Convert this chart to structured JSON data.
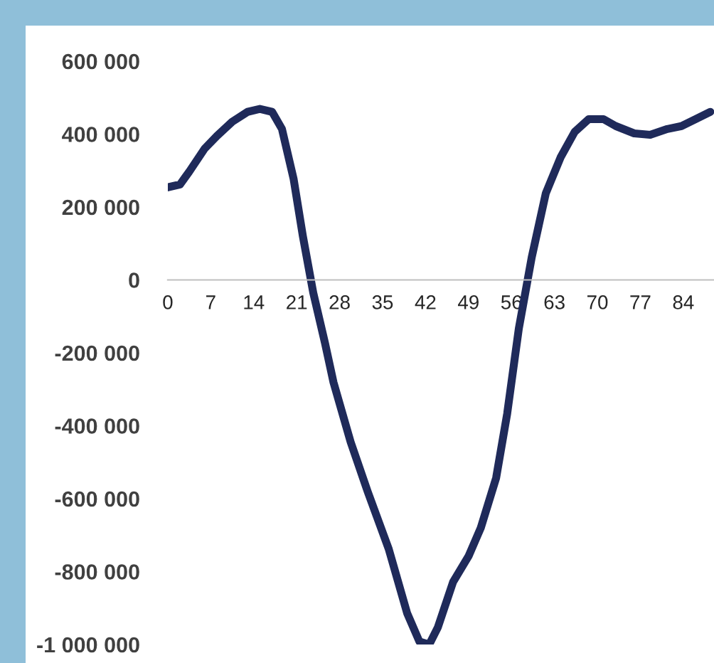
{
  "chart_data": {
    "type": "line",
    "x": [
      0,
      2,
      3.5,
      6,
      8,
      10.5,
      13,
      15,
      17,
      18.6,
      20.5,
      22,
      23.7,
      25.6,
      27,
      29.8,
      32.6,
      36,
      39,
      41,
      42.6,
      44,
      46.5,
      49,
      51,
      53.5,
      55.3,
      57.2,
      59.3,
      61.6,
      64,
      66.3,
      68.6,
      71,
      73,
      76,
      78.6,
      81.4,
      83.7,
      86,
      88.4
    ],
    "series": [
      {
        "color": "#1f2a5a",
        "values": [
          254000,
          262000,
          297000,
          360000,
          395000,
          434000,
          461000,
          469000,
          461000,
          414000,
          277000,
          121000,
          -35000,
          -172000,
          -281000,
          -445000,
          -582000,
          -738000,
          -914000,
          -992000,
          -1000000,
          -953000,
          -828000,
          -758000,
          -680000,
          -543000,
          -367000,
          -133000,
          62000,
          238000,
          336000,
          406000,
          441000,
          441000,
          422000,
          402000,
          398000,
          414000,
          422000,
          441000,
          461000
        ]
      }
    ],
    "xlim": [
      0,
      89
    ],
    "xticks": [
      0,
      7,
      14,
      21,
      28,
      35,
      42,
      49,
      56,
      63,
      70,
      77,
      84
    ],
    "ylim": [
      -1000000,
      600000
    ],
    "yticks": [
      {
        "value": 600000,
        "label": "600 000"
      },
      {
        "value": 400000,
        "label": "400 000"
      },
      {
        "value": 200000,
        "label": "200 000"
      },
      {
        "value": 0,
        "label": "0"
      },
      {
        "value": -200000,
        "label": "-200 000"
      },
      {
        "value": -400000,
        "label": "-400 000"
      },
      {
        "value": -600000,
        "label": "-600 000"
      },
      {
        "value": -800000,
        "label": "-800 000"
      },
      {
        "value": -1000000,
        "label": "-1 000 000"
      }
    ],
    "grid": false,
    "legend": false,
    "marker": "none",
    "line_style": "solid"
  }
}
